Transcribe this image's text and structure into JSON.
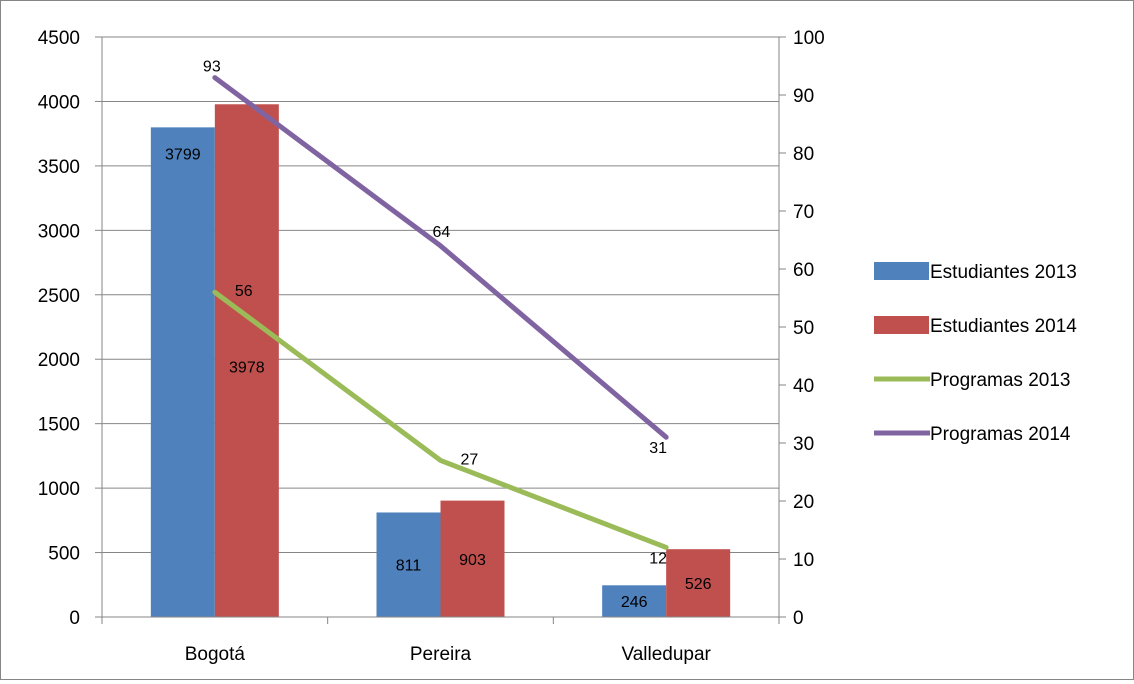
{
  "chart_data": {
    "type": "bar",
    "categories": [
      "Bogotá",
      "Pereira",
      "Valledupar"
    ],
    "series": [
      {
        "name": "Estudiantes 2013",
        "kind": "bar",
        "axis": "left",
        "color": "#4f81bd",
        "values": [
          3799,
          811,
          246
        ]
      },
      {
        "name": "Estudiantes 2014",
        "kind": "bar",
        "axis": "left",
        "color": "#c0504d",
        "values": [
          3978,
          903,
          526
        ]
      },
      {
        "name": "Programas 2013",
        "kind": "line",
        "axis": "right",
        "color": "#9bbb59",
        "values": [
          56,
          27,
          12
        ]
      },
      {
        "name": "Programas 2014",
        "kind": "line",
        "axis": "right",
        "color": "#8064a2",
        "values": [
          93,
          64,
          31
        ]
      }
    ],
    "y_left": {
      "min": 0,
      "max": 4500,
      "step": 500
    },
    "y_right": {
      "min": 0,
      "max": 100,
      "step": 10
    },
    "grid": true,
    "legend_position": "right",
    "title": "",
    "xlabel": "",
    "ylabel": ""
  }
}
